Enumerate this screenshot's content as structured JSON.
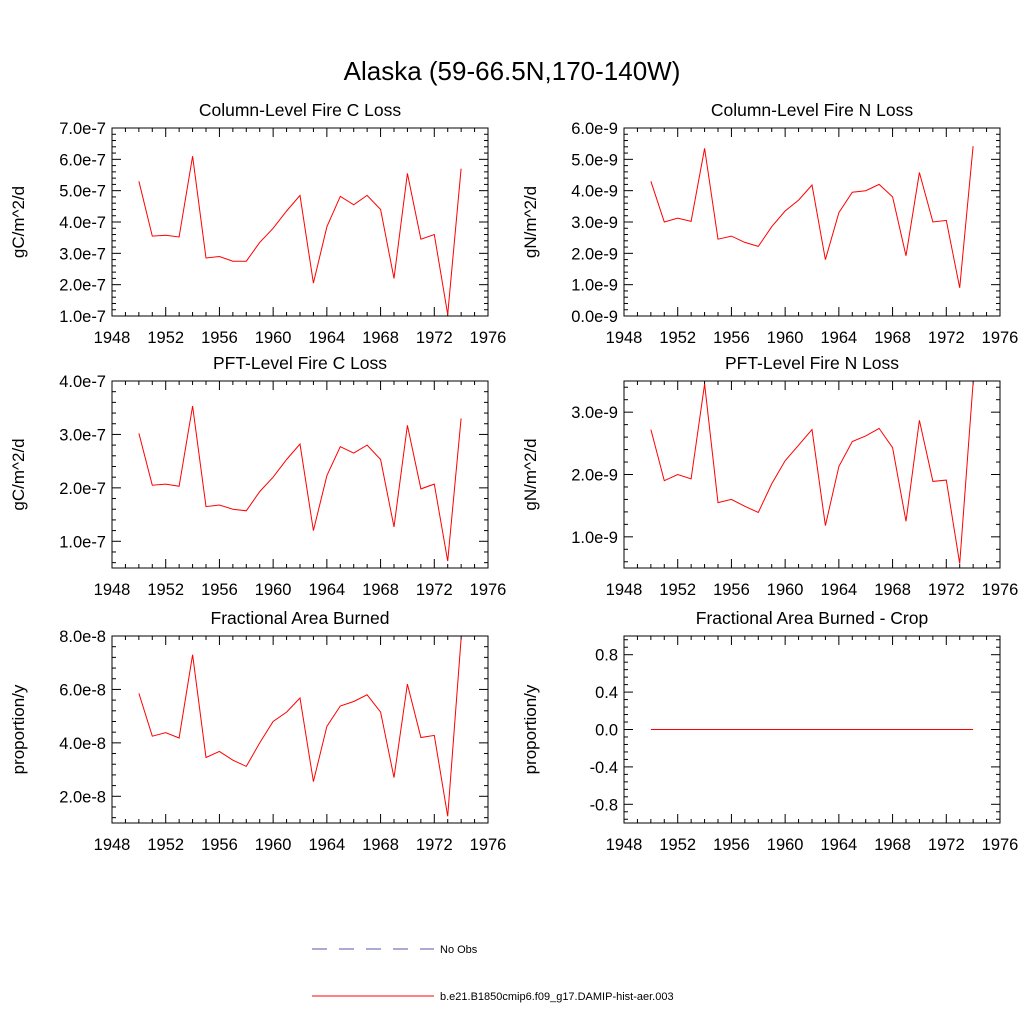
{
  "figure": {
    "title": "Alaska (59-66.5N,170-140W)"
  },
  "chart_data": [
    {
      "type": "line",
      "title": "Column-Level Fire C Loss",
      "ylabel": "gC/m^2/d",
      "xlabel": "",
      "xlim": [
        1948,
        1976
      ],
      "ylim": [
        1e-07,
        7e-07
      ],
      "xticks": [
        1948,
        1952,
        1956,
        1960,
        1964,
        1968,
        1972,
        1976
      ],
      "yticks": [
        1e-07,
        2e-07,
        3e-07,
        4e-07,
        5e-07,
        6e-07,
        7e-07
      ],
      "ytick_labels": [
        "1.0e-7",
        "2.0e-7",
        "3.0e-7",
        "4.0e-7",
        "5.0e-7",
        "6.0e-7",
        "7.0e-7"
      ],
      "series": [
        {
          "color": "#ff0000",
          "x": [
            1950,
            1951,
            1952,
            1953,
            1954,
            1955,
            1956,
            1957,
            1958,
            1959,
            1960,
            1961,
            1962,
            1963,
            1964,
            1965,
            1966,
            1967,
            1968,
            1969,
            1970,
            1971,
            1972,
            1973,
            1974
          ],
          "y": [
            5.3e-07,
            3.55e-07,
            3.58e-07,
            3.52e-07,
            6.1e-07,
            2.85e-07,
            2.9e-07,
            2.75e-07,
            2.75e-07,
            3.35e-07,
            3.8e-07,
            4.35e-07,
            4.85e-07,
            2.05e-07,
            3.85e-07,
            4.82e-07,
            4.55e-07,
            4.85e-07,
            4.4e-07,
            2.2e-07,
            5.55e-07,
            3.45e-07,
            3.6e-07,
            1.05e-07,
            5.7e-07
          ]
        }
      ]
    },
    {
      "type": "line",
      "title": "Column-Level Fire N Loss",
      "ylabel": "gN/m^2/d",
      "xlabel": "",
      "xlim": [
        1948,
        1976
      ],
      "ylim": [
        0.0,
        6e-09
      ],
      "xticks": [
        1948,
        1952,
        1956,
        1960,
        1964,
        1968,
        1972,
        1976
      ],
      "yticks": [
        0.0,
        1e-09,
        2e-09,
        3e-09,
        4e-09,
        5e-09,
        6e-09
      ],
      "ytick_labels": [
        "0.0e-9",
        "1.0e-9",
        "2.0e-9",
        "3.0e-9",
        "4.0e-9",
        "5.0e-9",
        "6.0e-9"
      ],
      "series": [
        {
          "color": "#ff0000",
          "x": [
            1950,
            1951,
            1952,
            1953,
            1954,
            1955,
            1956,
            1957,
            1958,
            1959,
            1960,
            1961,
            1962,
            1963,
            1964,
            1965,
            1966,
            1967,
            1968,
            1969,
            1970,
            1971,
            1972,
            1973,
            1974
          ],
          "y": [
            4.3e-09,
            3e-09,
            3.12e-09,
            3.02e-09,
            5.35e-09,
            2.45e-09,
            2.55e-09,
            2.35e-09,
            2.22e-09,
            2.85e-09,
            3.35e-09,
            3.7e-09,
            4.18e-09,
            1.8e-09,
            3.3e-09,
            3.95e-09,
            4e-09,
            4.2e-09,
            3.8e-09,
            1.92e-09,
            4.58e-09,
            3e-09,
            3.05e-09,
            9e-10,
            5.42e-09
          ]
        }
      ]
    },
    {
      "type": "line",
      "title": "PFT-Level Fire C Loss",
      "ylabel": "gC/m^2/d",
      "xlabel": "",
      "xlim": [
        1948,
        1976
      ],
      "ylim": [
        5e-08,
        4e-07
      ],
      "xticks": [
        1948,
        1952,
        1956,
        1960,
        1964,
        1968,
        1972,
        1976
      ],
      "yticks": [
        1e-07,
        2e-07,
        3e-07,
        4e-07
      ],
      "ytick_labels": [
        "1.0e-7",
        "2.0e-7",
        "3.0e-7",
        "4.0e-7"
      ],
      "series": [
        {
          "color": "#ff0000",
          "x": [
            1950,
            1951,
            1952,
            1953,
            1954,
            1955,
            1956,
            1957,
            1958,
            1959,
            1960,
            1961,
            1962,
            1963,
            1964,
            1965,
            1966,
            1967,
            1968,
            1969,
            1970,
            1971,
            1972,
            1973,
            1974
          ],
          "y": [
            3.02e-07,
            2.05e-07,
            2.07e-07,
            2.03e-07,
            3.53e-07,
            1.65e-07,
            1.68e-07,
            1.6e-07,
            1.57e-07,
            1.93e-07,
            2.2e-07,
            2.53e-07,
            2.82e-07,
            1.2e-07,
            2.23e-07,
            2.77e-07,
            2.65e-07,
            2.8e-07,
            2.53e-07,
            1.27e-07,
            3.17e-07,
            1.98e-07,
            2.07e-07,
            6.3e-08,
            3.3e-07
          ]
        }
      ]
    },
    {
      "type": "line",
      "title": "PFT-Level Fire N Loss",
      "ylabel": "gN/m^2/d",
      "xlabel": "",
      "xlim": [
        1948,
        1976
      ],
      "ylim": [
        5e-10,
        3.5e-09
      ],
      "xticks": [
        1948,
        1952,
        1956,
        1960,
        1964,
        1968,
        1972,
        1976
      ],
      "yticks": [
        1e-09,
        2e-09,
        3e-09
      ],
      "ytick_labels": [
        "1.0e-9",
        "2.0e-9",
        "3.0e-9"
      ],
      "series": [
        {
          "color": "#ff0000",
          "x": [
            1950,
            1951,
            1952,
            1953,
            1954,
            1955,
            1956,
            1957,
            1958,
            1959,
            1960,
            1961,
            1962,
            1963,
            1964,
            1965,
            1966,
            1967,
            1968,
            1969,
            1970,
            1971,
            1972,
            1973,
            1974
          ],
          "y": [
            2.72e-09,
            1.9e-09,
            2e-09,
            1.93e-09,
            3.45e-09,
            1.55e-09,
            1.6e-09,
            1.49e-09,
            1.39e-09,
            1.85e-09,
            2.22e-09,
            2.47e-09,
            2.72e-09,
            1.18e-09,
            2.13e-09,
            2.53e-09,
            2.62e-09,
            2.74e-09,
            2.43e-09,
            1.25e-09,
            2.87e-09,
            1.89e-09,
            1.91e-09,
            5.7e-10,
            3.47e-09
          ]
        }
      ]
    },
    {
      "type": "line",
      "title": "Fractional Area Burned",
      "ylabel": "proportion/y",
      "xlabel": "",
      "xlim": [
        1948,
        1976
      ],
      "ylim": [
        1e-08,
        8e-08
      ],
      "xticks": [
        1948,
        1952,
        1956,
        1960,
        1964,
        1968,
        1972,
        1976
      ],
      "yticks": [
        2e-08,
        4e-08,
        6e-08,
        8e-08
      ],
      "ytick_labels": [
        "2.0e-8",
        "4.0e-8",
        "6.0e-8",
        "8.0e-8"
      ],
      "series": [
        {
          "color": "#ff0000",
          "x": [
            1950,
            1951,
            1952,
            1953,
            1954,
            1955,
            1956,
            1957,
            1958,
            1959,
            1960,
            1961,
            1962,
            1963,
            1964,
            1965,
            1966,
            1967,
            1968,
            1969,
            1970,
            1971,
            1972,
            1973,
            1974
          ],
          "y": [
            5.85e-08,
            4.25e-08,
            4.38e-08,
            4.18e-08,
            7.3e-08,
            3.45e-08,
            3.68e-08,
            3.35e-08,
            3.12e-08,
            4e-08,
            4.8e-08,
            5.15e-08,
            5.68e-08,
            2.55e-08,
            4.62e-08,
            5.38e-08,
            5.55e-08,
            5.8e-08,
            5.15e-08,
            2.7e-08,
            6.2e-08,
            4.2e-08,
            4.28e-08,
            1.25e-08,
            7.9e-08
          ]
        }
      ]
    },
    {
      "type": "line",
      "title": "Fractional Area Burned - Crop",
      "ylabel": "proportion/y",
      "xlabel": "",
      "xlim": [
        1948,
        1976
      ],
      "ylim": [
        -1.0,
        1.0
      ],
      "xticks": [
        1948,
        1952,
        1956,
        1960,
        1964,
        1968,
        1972,
        1976
      ],
      "yticks": [
        -0.8,
        -0.4,
        0.0,
        0.4,
        0.8
      ],
      "ytick_labels": [
        "-0.8",
        "-0.4",
        "0.0",
        "0.4",
        "0.8"
      ],
      "series": [
        {
          "color": "#ff0000",
          "x": [
            1950,
            1974
          ],
          "y": [
            0.0,
            0.0
          ]
        }
      ]
    }
  ],
  "legend": {
    "entries": [
      {
        "label": "No Obs",
        "style": "dashed",
        "color": "#5555aa"
      },
      {
        "label": "b.e21.B1850cmip6.f09_g17.DAMIP-hist-aer.003",
        "style": "solid",
        "color": "#ff0000"
      }
    ]
  }
}
